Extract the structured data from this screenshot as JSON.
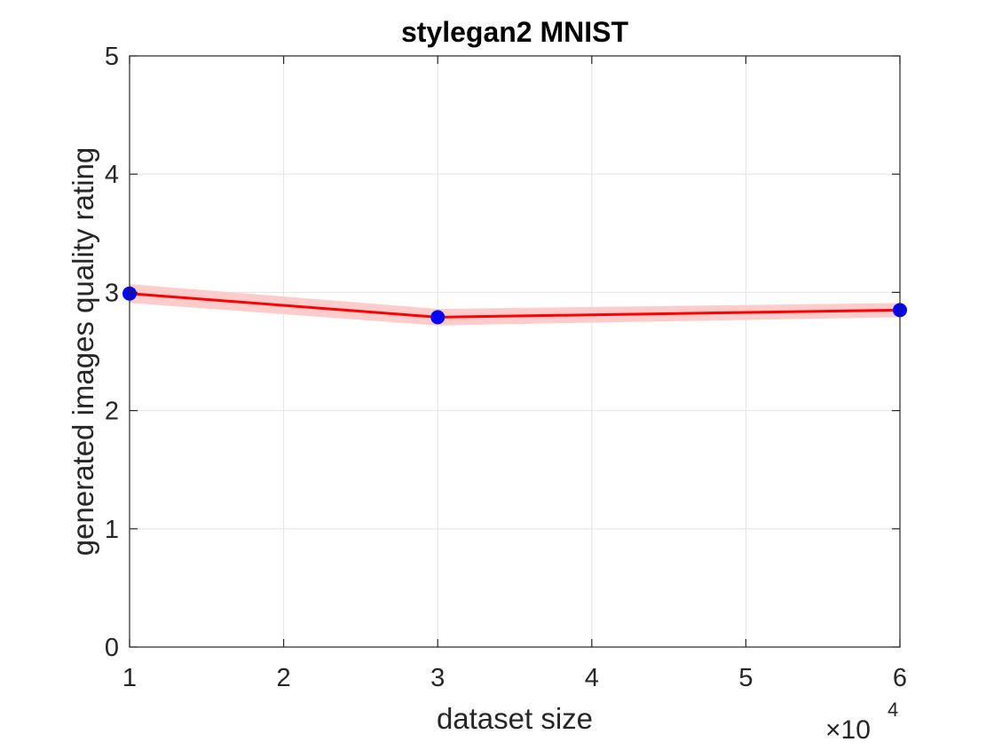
{
  "chart_data": {
    "type": "line",
    "title": "stylegan2 MNIST",
    "xlabel": "dataset size",
    "ylabel": "generated images quality rating",
    "x_multiplier_base": "10",
    "x_multiplier_exponent": "4",
    "x": [
      1,
      3,
      6
    ],
    "x_scale": 10000,
    "xlim": [
      1,
      6
    ],
    "ylim": [
      0,
      5
    ],
    "xticks": [
      1,
      2,
      3,
      4,
      5,
      6
    ],
    "yticks": [
      0,
      1,
      2,
      3,
      4,
      5
    ],
    "xtick_labels": [
      "1",
      "2",
      "3",
      "4",
      "5",
      "6"
    ],
    "ytick_labels": [
      "0",
      "1",
      "2",
      "3",
      "4",
      "5"
    ],
    "grid": true,
    "series": [
      {
        "values": [
          2.99,
          2.79,
          2.85
        ],
        "band_lower": [
          2.91,
          2.72,
          2.79
        ],
        "band_upper": [
          3.07,
          2.86,
          2.91
        ],
        "line_color": "#ff0000",
        "band_color": "#ffcccc",
        "marker_color": "#0000ff"
      }
    ]
  }
}
